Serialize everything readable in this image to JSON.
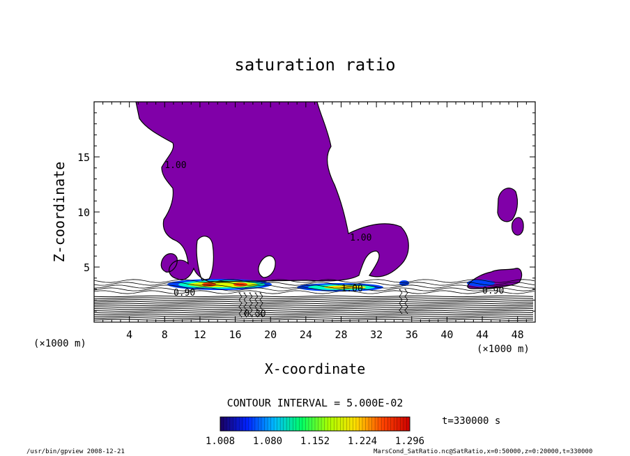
{
  "chart_data": {
    "type": "heatmap",
    "title": "saturation ratio",
    "xlabel": "X-coordinate",
    "ylabel": "Z-coordinate",
    "x_unit": "(×1000 m)",
    "y_unit": "(×1000 m)",
    "xlim": [
      0,
      50
    ],
    "ylim": [
      0,
      20
    ],
    "x_ticks": [
      4,
      8,
      12,
      16,
      20,
      24,
      28,
      32,
      36,
      40,
      44,
      48
    ],
    "y_ticks": [
      5,
      10,
      15
    ],
    "contour_interval_label": "CONTOUR INTERVAL = 5.000E-02",
    "time_label": "t=330000 s",
    "colorbar": {
      "ticks": [
        "1.008",
        "1.080",
        "1.152",
        "1.224",
        "1.296"
      ],
      "range": [
        1.008,
        1.296
      ],
      "colors": [
        "#1a0060",
        "#0022ff",
        "#00bbff",
        "#00ff66",
        "#aaff00",
        "#ffdd00",
        "#ff4400",
        "#cc0000"
      ]
    },
    "fill_color": "#8000a8",
    "contour_labels": [
      {
        "text": "1.00",
        "x": 8,
        "y": 14
      },
      {
        "text": "1.00",
        "x": 29,
        "y": 7.4
      },
      {
        "text": "1.00",
        "x": 28,
        "y": 2.8
      },
      {
        "text": "0.90",
        "x": 44,
        "y": 2.6
      },
      {
        "text": "0.90",
        "x": 9,
        "y": 2.4
      },
      {
        "text": "0.30",
        "x": 17,
        "y": 0.5
      }
    ],
    "footer_left": "/usr/bin/gpview   2008-12-21",
    "footer_right": "MarsCond_SatRatio.nc@SatRatio,x=0:50000,z=0:20000,t=330000"
  }
}
